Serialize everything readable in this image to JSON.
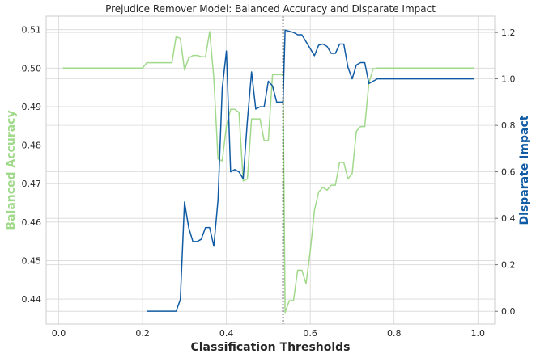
{
  "chart_data": {
    "type": "line",
    "title": "Prejudice Remover Model: Balanced Accuracy and Disparate Impact",
    "xlabel": "Classification Thresholds",
    "ylabel_left": "Balanced Accuracy",
    "ylabel_right": "Disparate Impact",
    "xlim": [
      -0.03,
      1.04
    ],
    "ylim_left": [
      0.4335,
      0.5135
    ],
    "ylim_right": [
      -0.055,
      1.27
    ],
    "x_ticks": [
      "0.0",
      "0.2",
      "0.4",
      "0.6",
      "0.8",
      "1.0"
    ],
    "x_tick_values": [
      0.0,
      0.2,
      0.4,
      0.6,
      0.8,
      1.0
    ],
    "y_left_ticks": [
      "0.44",
      "0.45",
      "0.46",
      "0.47",
      "0.48",
      "0.49",
      "0.50",
      "0.51"
    ],
    "y_left_tick_values": [
      0.44,
      0.45,
      0.46,
      0.47,
      0.48,
      0.49,
      0.5,
      0.51
    ],
    "y_right_ticks": [
      "0.0",
      "0.2",
      "0.4",
      "0.6",
      "0.8",
      "1.0",
      "1.2"
    ],
    "y_right_tick_values": [
      0.0,
      0.2,
      0.4,
      0.6,
      0.8,
      1.0,
      1.2
    ],
    "grid": true,
    "vline_x": 0.535,
    "colors": {
      "balanced_accuracy": "#a1d98b",
      "disparate_impact": "#105ba4",
      "vline": "#000000",
      "grid": "#d8d8d8",
      "spine": "#cccccc"
    },
    "series": [
      {
        "axis": "left",
        "x": [
          0.01,
          0.2,
          0.21,
          0.27,
          0.28,
          0.29,
          0.3,
          0.31,
          0.32,
          0.33,
          0.34,
          0.35,
          0.36,
          0.37,
          0.38,
          0.39,
          0.4,
          0.41,
          0.42,
          0.43,
          0.44,
          0.45,
          0.46,
          0.47,
          0.48,
          0.49,
          0.5,
          0.51,
          0.52,
          0.53,
          0.535,
          0.54,
          0.55,
          0.56,
          0.57,
          0.58,
          0.59,
          0.6,
          0.61,
          0.62,
          0.63,
          0.64,
          0.65,
          0.66,
          0.67,
          0.68,
          0.69,
          0.7,
          0.71,
          0.72,
          0.73,
          0.74,
          0.75,
          0.76,
          0.99
        ],
        "y": [
          0.5,
          0.5,
          0.5014,
          0.5014,
          0.5082,
          0.5077,
          0.4995,
          0.5026,
          0.5033,
          0.5033,
          0.503,
          0.5029,
          0.5095,
          0.4974,
          0.4764,
          0.4759,
          0.485,
          0.4893,
          0.4893,
          0.4885,
          0.4707,
          0.4712,
          0.4868,
          0.4868,
          0.4868,
          0.4812,
          0.4812,
          0.4983,
          0.4983,
          0.4983,
          0.4983,
          0.4365,
          0.4396,
          0.4396,
          0.4475,
          0.4475,
          0.444,
          0.4525,
          0.463,
          0.4678,
          0.469,
          0.4683,
          0.4696,
          0.4696,
          0.4755,
          0.4755,
          0.4712,
          0.4726,
          0.4836,
          0.4848,
          0.4848,
          0.4962,
          0.4998,
          0.5,
          0.5
        ]
      },
      {
        "axis": "right",
        "x": [
          0.21,
          0.28,
          0.29,
          0.3,
          0.31,
          0.32,
          0.33,
          0.34,
          0.35,
          0.36,
          0.37,
          0.38,
          0.39,
          0.4,
          0.41,
          0.42,
          0.43,
          0.44,
          0.45,
          0.46,
          0.47,
          0.48,
          0.49,
          0.5,
          0.51,
          0.52,
          0.53,
          0.535,
          0.54,
          0.55,
          0.56,
          0.57,
          0.58,
          0.59,
          0.6,
          0.61,
          0.62,
          0.63,
          0.64,
          0.65,
          0.66,
          0.67,
          0.68,
          0.69,
          0.7,
          0.71,
          0.72,
          0.73,
          0.74,
          0.75,
          0.76,
          0.99
        ],
        "y": [
          0.0,
          0.0,
          0.05,
          0.47,
          0.36,
          0.3,
          0.3,
          0.31,
          0.36,
          0.36,
          0.28,
          0.48,
          0.96,
          1.12,
          0.6,
          0.61,
          0.6,
          0.57,
          0.82,
          1.03,
          0.87,
          0.88,
          0.88,
          0.99,
          0.97,
          0.9,
          0.9,
          0.9,
          1.21,
          1.205,
          1.2,
          1.19,
          1.19,
          1.16,
          1.13,
          1.1,
          1.145,
          1.15,
          1.14,
          1.11,
          1.11,
          1.15,
          1.15,
          1.05,
          1.0,
          1.06,
          1.07,
          1.07,
          0.98,
          0.99,
          1.0,
          1.0
        ]
      }
    ]
  }
}
